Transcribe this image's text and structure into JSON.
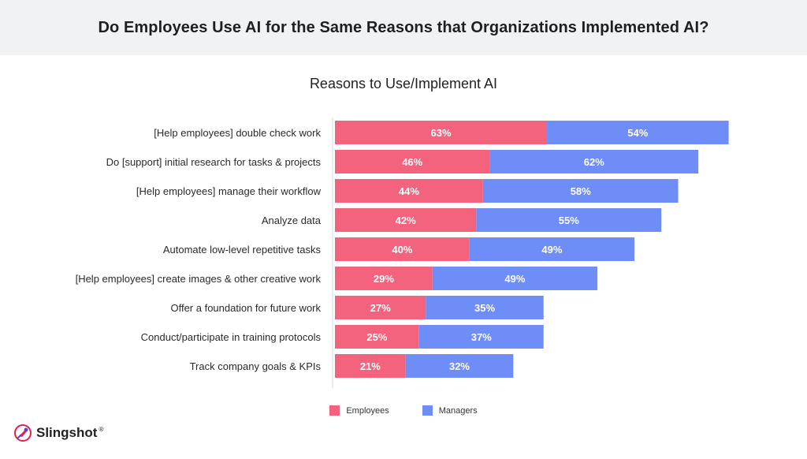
{
  "header": {
    "title": "Do Employees Use AI for the Same Reasons that Organizations Implemented AI?"
  },
  "chart_data": {
    "type": "bar",
    "orientation": "horizontal",
    "stacked": true,
    "title": "Reasons to Use/Implement AI",
    "categories": [
      "[Help employees] double check work",
      "Do [support] initial research for tasks & projects",
      "[Help employees] manage their workflow",
      "Analyze data",
      "Automate low-level repetitive tasks",
      "[Help employees] create images & other creative work",
      "Offer a foundation for future work",
      "Conduct/participate in training protocols",
      "Track company goals & KPIs"
    ],
    "series": [
      {
        "name": "Employees",
        "color": "#f4637e",
        "values": [
          63,
          46,
          44,
          42,
          40,
          29,
          27,
          25,
          21
        ],
        "labels": [
          "63%",
          "46%",
          "44%",
          "42%",
          "40%",
          "29%",
          "27%",
          "25%",
          "21%"
        ]
      },
      {
        "name": "Managers",
        "color": "#6f8df7",
        "values": [
          54,
          62,
          58,
          55,
          49,
          49,
          35,
          37,
          32
        ],
        "labels": [
          "54%",
          "62%",
          "58%",
          "55%",
          "49%",
          "49%",
          "35%",
          "37%",
          "32%"
        ]
      }
    ],
    "legend_position": "bottom-center",
    "grid": false
  },
  "brand": {
    "name": "Slingshot",
    "mark": "®"
  }
}
